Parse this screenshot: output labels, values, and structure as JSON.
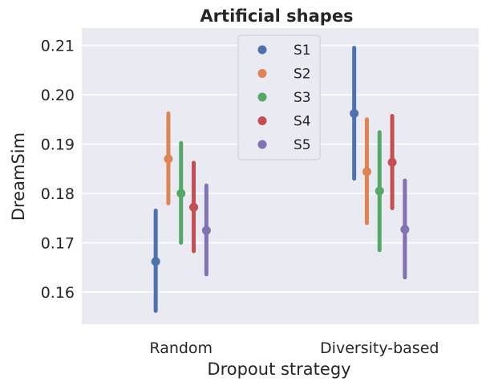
{
  "chart_data": {
    "type": "pointplot",
    "title": "Artificial shapes",
    "xlabel": "Dropout strategy",
    "ylabel": "DreamSim",
    "categories": [
      "Random",
      "Diversity-based"
    ],
    "ylim": [
      0.1535,
      0.2135
    ],
    "yticks": [
      0.16,
      0.17,
      0.18,
      0.19,
      0.2,
      0.21
    ],
    "ytick_labels": [
      "0.16",
      "0.17",
      "0.18",
      "0.19",
      "0.20",
      "0.21"
    ],
    "grid": true,
    "legend_position": "top-center",
    "series": [
      {
        "name": "S1",
        "color": "#4c72b0",
        "values": [
          0.1662,
          0.1962
        ],
        "ci_low": [
          0.1562,
          0.183
        ],
        "ci_high": [
          0.1765,
          0.2095
        ]
      },
      {
        "name": "S2",
        "color": "#dd8452",
        "values": [
          0.187,
          0.1844
        ],
        "ci_low": [
          0.178,
          0.174
        ],
        "ci_high": [
          0.1962,
          0.195
        ]
      },
      {
        "name": "S3",
        "color": "#55a868",
        "values": [
          0.18,
          0.1805
        ],
        "ci_low": [
          0.17,
          0.1685
        ],
        "ci_high": [
          0.1902,
          0.1924
        ]
      },
      {
        "name": "S4",
        "color": "#c44e52",
        "values": [
          0.1772,
          0.1863
        ],
        "ci_low": [
          0.1683,
          0.177
        ],
        "ci_high": [
          0.1862,
          0.1957
        ]
      },
      {
        "name": "S5",
        "color": "#8172b3",
        "values": [
          0.1725,
          0.1727
        ],
        "ci_low": [
          0.1636,
          0.163
        ],
        "ci_high": [
          0.1816,
          0.1826
        ]
      }
    ]
  }
}
